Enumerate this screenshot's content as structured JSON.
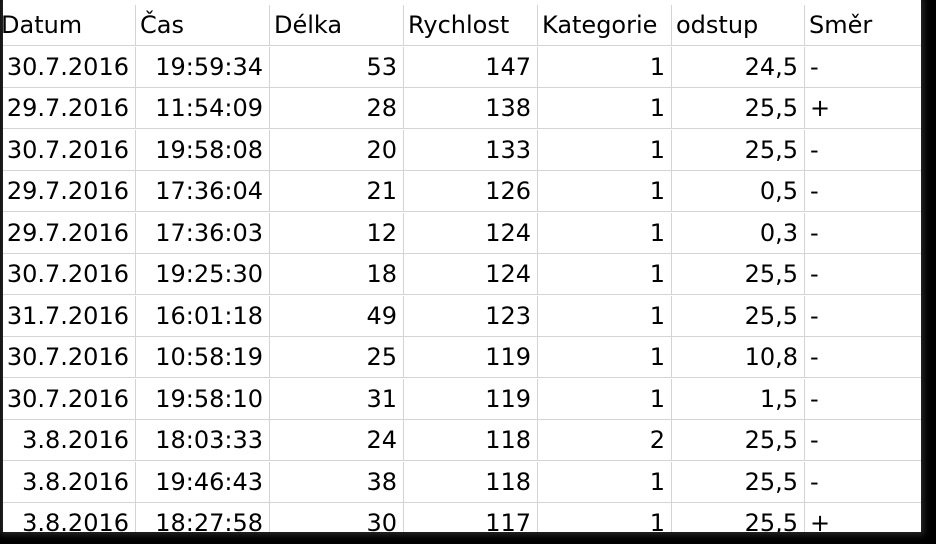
{
  "headers": [
    "Datum",
    "Čas",
    "Délka",
    "Rychlost",
    "Kategorie",
    "odstup",
    "Směr"
  ],
  "rows": [
    [
      "30.7.2016",
      "19:59:34",
      "53",
      "147",
      "1",
      "24,5",
      "-"
    ],
    [
      "29.7.2016",
      "11:54:09",
      "28",
      "138",
      "1",
      "25,5",
      "+"
    ],
    [
      "30.7.2016",
      "19:58:08",
      "20",
      "133",
      "1",
      "25,5",
      "-"
    ],
    [
      "29.7.2016",
      "17:36:04",
      "21",
      "126",
      "1",
      "0,5",
      "-"
    ],
    [
      "29.7.2016",
      "17:36:03",
      "12",
      "124",
      "1",
      "0,3",
      "-"
    ],
    [
      "30.7.2016",
      "19:25:30",
      "18",
      "124",
      "1",
      "25,5",
      "-"
    ],
    [
      "31.7.2016",
      "16:01:18",
      "49",
      "123",
      "1",
      "25,5",
      "-"
    ],
    [
      "30.7.2016",
      "10:58:19",
      "25",
      "119",
      "1",
      "10,8",
      "-"
    ],
    [
      "30.7.2016",
      "19:58:10",
      "31",
      "119",
      "1",
      "1,5",
      "-"
    ],
    [
      "3.8.2016",
      "18:03:33",
      "24",
      "118",
      "2",
      "25,5",
      "-"
    ],
    [
      "3.8.2016",
      "19:46:43",
      "38",
      "118",
      "1",
      "25,5",
      "-"
    ],
    [
      "3.8.2016",
      "18:27:58",
      "30",
      "117",
      "1",
      "25,5",
      "+"
    ]
  ]
}
